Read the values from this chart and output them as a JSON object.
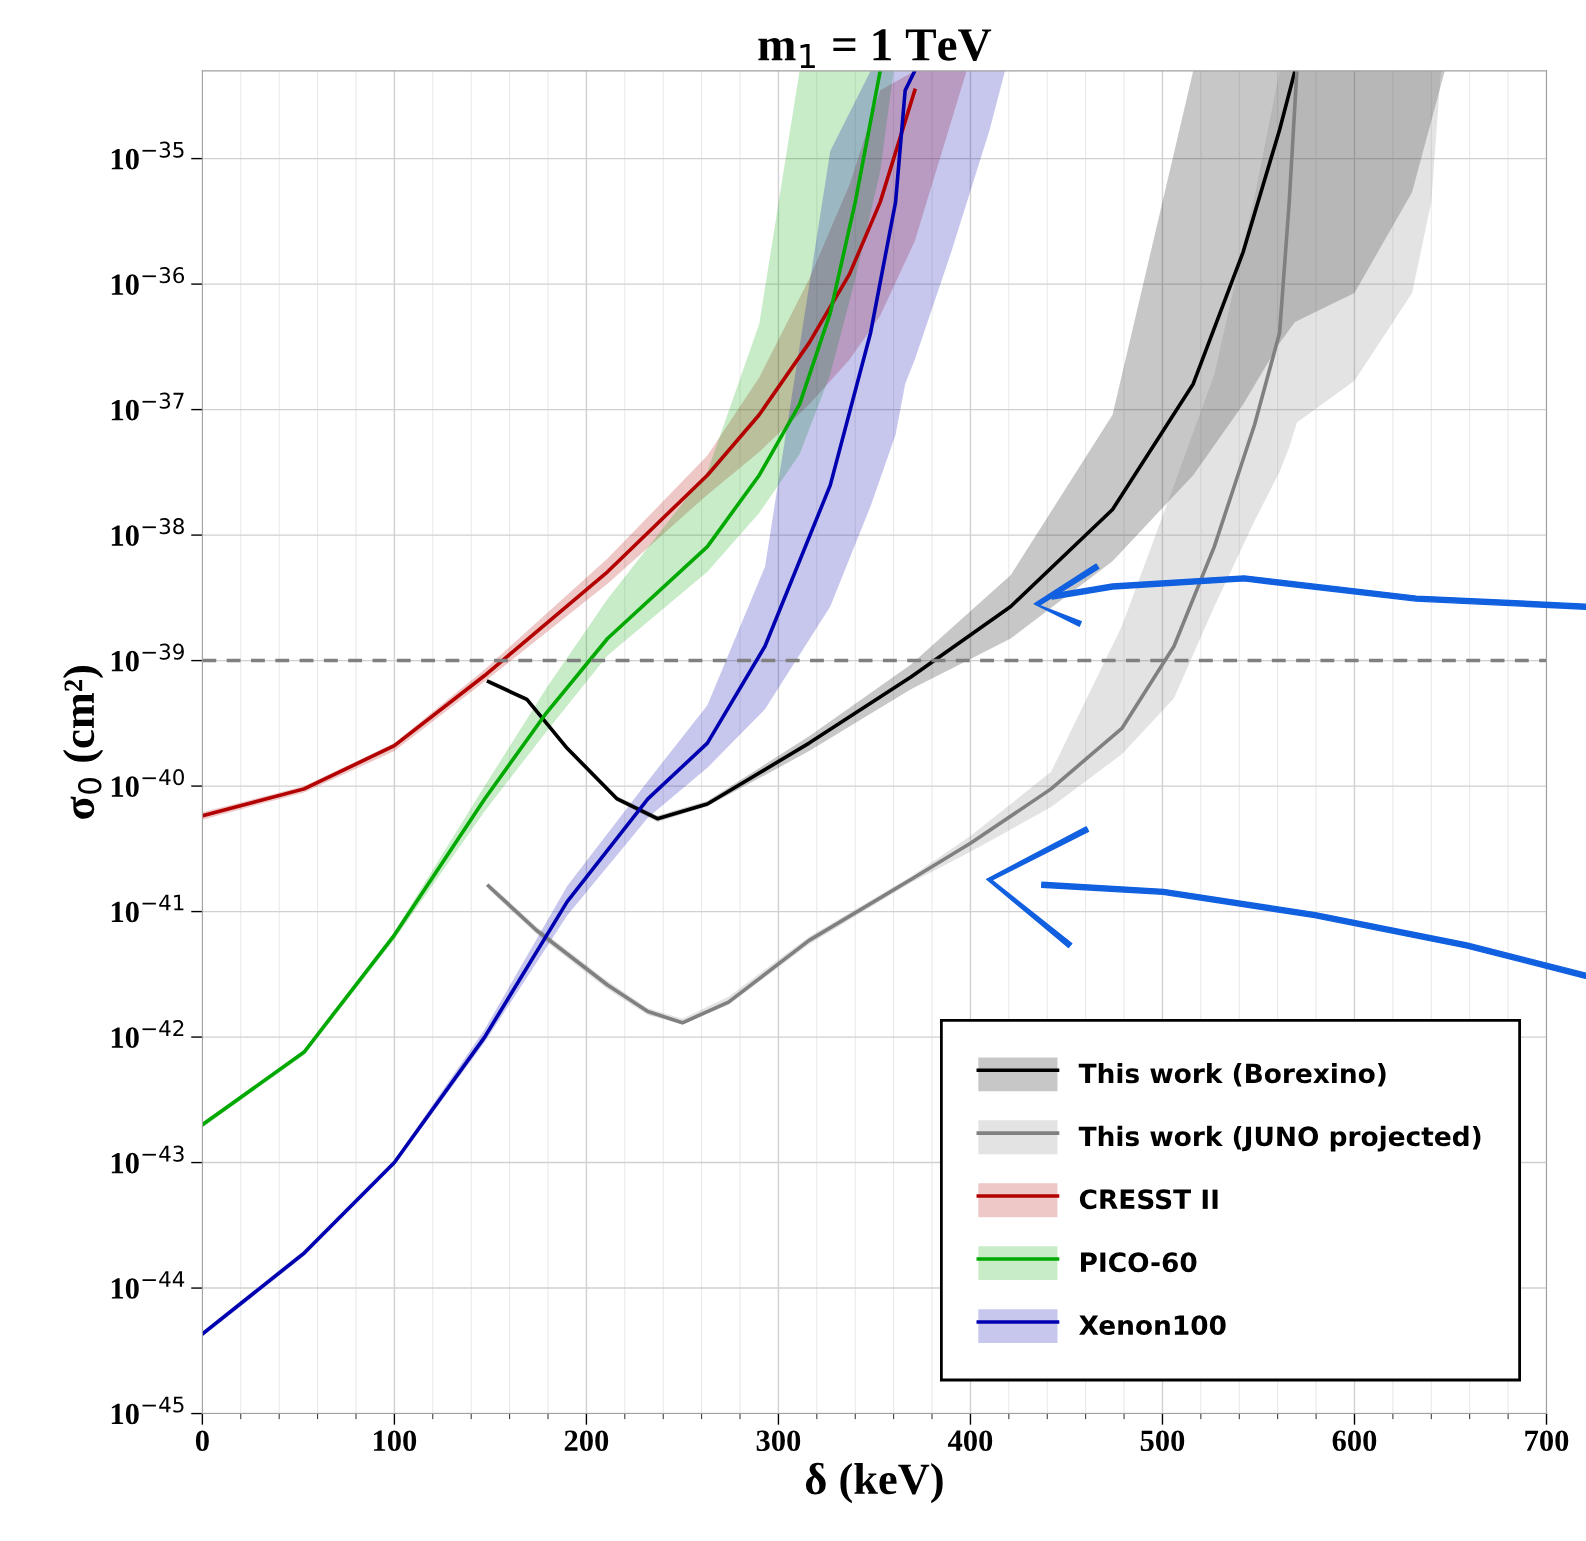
{
  "chart_data": {
    "type": "line",
    "title": "m$_{1}$ = 1 TeV",
    "xlabel": "δ (keV)",
    "ylabel": "σ$_{0}$ (cm²)",
    "log": "y",
    "grid": true,
    "legend": "bottom right",
    "xlim": [
      0,
      700
    ],
    "xticks": [
      0,
      100,
      200,
      300,
      400,
      500,
      600,
      700
    ],
    "ylim": [
      1e-45,
      5e-35
    ],
    "yticks": [
      {
        "value": 1e-45,
        "label": "10$^{−45}$"
      },
      {
        "value": 1e-44,
        "label": "10$^{−44}$"
      },
      {
        "value": 1e-43,
        "label": "10$^{−43}$"
      },
      {
        "value": 1e-42,
        "label": "10$^{−42}$"
      },
      {
        "value": 1e-41,
        "label": "10$^{−41}$"
      },
      {
        "value": 1e-40,
        "label": "10$^{−40}$"
      },
      {
        "value": 1e-39,
        "label": "10$^{−39}$"
      },
      {
        "value": 1e-38,
        "label": "10$^{−38}$"
      },
      {
        "value": 1e-37,
        "label": "10$^{−37}$"
      },
      {
        "value": 1e-36,
        "label": "10$^{−36}$"
      },
      {
        "value": 1e-35,
        "label": "10$^{−35}$"
      }
    ],
    "ref_lines": [
      {
        "axis": "y",
        "value": 1e-39,
        "color": "#808080",
        "line_style": "dashed"
      }
    ],
    "series": [
      {
        "name": "This work (Borexino)",
        "color": "#000000",
        "x": [
          149,
          169,
          190,
          216,
          237,
          263,
          316,
          369,
          421,
          474,
          516,
          542,
          561,
          569,
          600,
          630,
          647
        ],
        "values": [
          6.8e-40,
          4.9e-40,
          2e-40,
          7.9e-41,
          5.5e-41,
          7.2e-41,
          2.2e-40,
          7.4e-40,
          2.7e-39,
          1.6e-38,
          1.6e-37,
          1.8e-36,
          1.7e-35,
          5e-35,
          null,
          null,
          null
        ],
        "lower": [
          6.5e-40,
          4.7e-40,
          1.9e-40,
          7.6e-41,
          5.2e-41,
          6.9e-41,
          1.9e-40,
          5.9e-40,
          1.5e-39,
          6.2e-39,
          3e-38,
          1.1e-37,
          3.4e-37,
          5e-37,
          8.5e-37,
          5.4e-36,
          5e-35
        ],
        "upper": [
          7.1e-40,
          5.1e-40,
          2.1e-40,
          8.3e-41,
          5.8e-41,
          7.6e-41,
          2.5e-40,
          9.3e-40,
          4.8e-39,
          9.1e-38,
          5e-35,
          5e-35,
          5e-35,
          5e-35,
          5e-35,
          5e-35,
          5e-35
        ]
      },
      {
        "name": "This work (JUNO projected)",
        "color": "#808080",
        "x": [
          149,
          174,
          211,
          232,
          250,
          274,
          316,
          369,
          400,
          442,
          479,
          506,
          527,
          548,
          561,
          566,
          570,
          600,
          630,
          640,
          645
        ],
        "values": [
          1.6e-41,
          7.1e-42,
          2.6e-42,
          1.6e-42,
          1.3e-42,
          1.9e-42,
          5.9e-42,
          1.8e-41,
          3.5e-41,
          9.5e-41,
          2.9e-40,
          1.3e-39,
          8.1e-39,
          7.6e-38,
          4.1e-37,
          4.5e-36,
          5e-35,
          null,
          null,
          null,
          null
        ],
        "lower": [
          1.5e-41,
          6.6e-42,
          2.4e-42,
          1.5e-42,
          1.26e-42,
          1.8e-42,
          5.5e-42,
          1.7e-41,
          3e-41,
          6.8e-41,
          1.8e-40,
          5e-40,
          2.7e-39,
          1.3e-38,
          3.2e-38,
          5e-38,
          7.9e-38,
          1.7e-37,
          8.5e-37,
          4.5e-36,
          5e-35
        ],
        "upper": [
          1.7e-41,
          7.6e-42,
          2.8e-42,
          1.7e-42,
          1.4e-42,
          2.1e-42,
          6.3e-42,
          1.9e-41,
          4e-41,
          1.3e-40,
          1.9e-39,
          2.5e-38,
          1.9e-37,
          5e-36,
          5e-35,
          5e-35,
          5e-35,
          5e-35,
          5e-35,
          5e-35,
          5e-35
        ]
      },
      {
        "name": "CRESST II",
        "color": "#b30000",
        "x": [
          0,
          53,
          100,
          147,
          211,
          263,
          290,
          316,
          337,
          353,
          371,
          398
        ],
        "values": [
          5.8e-41,
          9.5e-41,
          2.1e-40,
          7.6e-40,
          5.1e-39,
          3e-38,
          9.1e-38,
          3.4e-37,
          1.2e-36,
          4.5e-36,
          3.5e-35,
          null
        ],
        "lower": [
          5.4e-41,
          8.9e-41,
          1.9e-40,
          6.8e-40,
          4.1e-39,
          2.1e-38,
          4.6e-38,
          1.1e-37,
          2.5e-37,
          5.6e-37,
          2.2e-36,
          5e-35
        ],
        "upper": [
          6.2e-41,
          1e-40,
          2.2e-40,
          8.5e-40,
          6.5e-39,
          4.3e-38,
          1.8e-37,
          1.1e-36,
          6.2e-36,
          3.5e-35,
          5e-35,
          5e-35
        ]
      },
      {
        "name": "PICO-60",
        "color": "#00a800",
        "x": [
          0,
          53,
          100,
          147,
          179,
          211,
          263,
          290,
          311,
          327,
          340,
          353,
          360
        ],
        "values": [
          2e-43,
          7.6e-43,
          6.5e-42,
          7.9e-41,
          3.8e-40,
          1.5e-39,
          8.1e-39,
          3e-38,
          1.1e-37,
          5.9e-37,
          4.5e-36,
          5e-35,
          null
        ],
        "lower": [
          1.9e-43,
          7.2e-43,
          6e-42,
          6.3e-41,
          2.7e-40,
          1.1e-39,
          5.1e-39,
          1.5e-38,
          4.4e-38,
          1.9e-37,
          1.1e-36,
          7.9e-36,
          5e-35
        ],
        "upper": [
          2.1e-43,
          7.9e-43,
          6.9e-42,
          1e-40,
          6e-40,
          3.1e-39,
          3.2e-38,
          4.8e-37,
          5e-35,
          5e-35,
          5e-35,
          5e-35,
          5e-35
        ]
      },
      {
        "name": "Xenon100",
        "color": "#0000b0",
        "x": [
          0,
          53,
          100,
          147,
          190,
          232,
          263,
          293,
          327,
          348,
          361,
          366,
          371,
          390,
          410,
          418
        ],
        "values": [
          4.3e-45,
          1.9e-44,
          1e-43,
          1e-42,
          1.2e-41,
          7.9e-41,
          2.2e-40,
          1.3e-39,
          2.5e-38,
          4.1e-37,
          4.5e-36,
          3.5e-35,
          5e-35,
          null,
          null,
          null
        ],
        "lower": [
          4.1e-45,
          1.8e-44,
          9.5e-44,
          9.1e-43,
          9.3e-42,
          5.6e-41,
          1.4e-40,
          4.1e-40,
          2.7e-39,
          1.7e-38,
          6.3e-38,
          1.6e-37,
          2.5e-37,
          1.8e-36,
          1.7e-35,
          5e-35
        ],
        "upper": [
          4.5e-45,
          2e-44,
          1.05e-43,
          1.15e-42,
          1.6e-41,
          1.1e-40,
          4.4e-40,
          5.6e-39,
          1.15e-35,
          5e-35,
          5e-35,
          5e-35,
          5e-35,
          5e-35,
          5e-35,
          5e-35
        ]
      }
    ]
  }
}
